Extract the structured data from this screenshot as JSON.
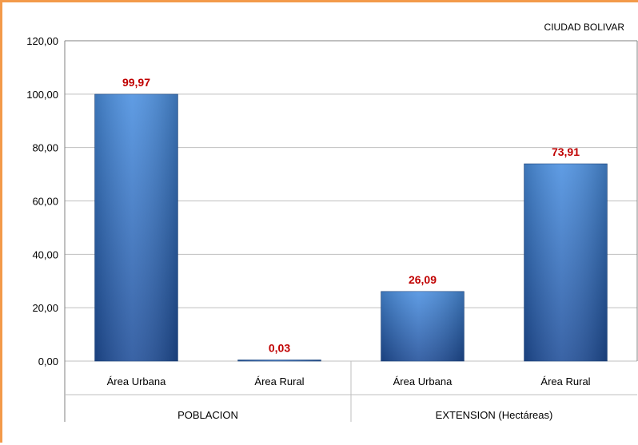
{
  "chart_data": {
    "type": "bar",
    "title": "CIUDAD BOLIVAR",
    "categories": [
      "Área Urbana",
      "Área Rural",
      "Área Urbana",
      "Área Rural"
    ],
    "groups": [
      {
        "label": "POBLACION",
        "span": [
          0,
          1
        ]
      },
      {
        "label": "EXTENSION  (Hectáreas)",
        "span": [
          2,
          3
        ]
      }
    ],
    "values": [
      99.97,
      0.03,
      26.09,
      73.91
    ],
    "value_labels": [
      "99,97",
      "0,03",
      "26,09",
      "73,91"
    ],
    "ylim": [
      0,
      120
    ],
    "yticks": [
      0,
      20,
      40,
      60,
      80,
      100,
      120
    ],
    "ytick_labels": [
      "0,00",
      "20,00",
      "40,00",
      "60,00",
      "80,00",
      "100,00",
      "120,00"
    ],
    "xlabel": "",
    "ylabel": "",
    "grid": true,
    "legend": "none",
    "colors": {
      "bar_light": "#5b9bd5",
      "bar_dark": "#1f4e99",
      "data_label": "#c00000",
      "border": "#f39a4a",
      "grid": "#bfbfbf"
    }
  }
}
